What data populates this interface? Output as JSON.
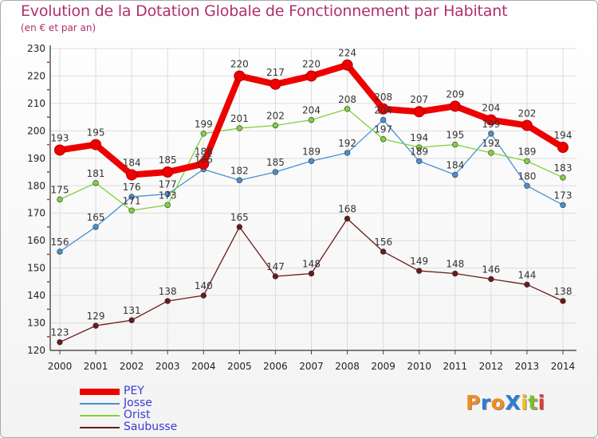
{
  "title": "Evolution de la Dotation Globale de Fonctionnement par Habitant",
  "subtitle": "(en € et par an)",
  "logo": {
    "text": "ProXiti",
    "letter_colors": [
      "#f28c1e",
      "#2b7fd4",
      "#f28c1e",
      "#2b7fd4",
      "#f2c01e",
      "#7bbf2a",
      "#e33b3b"
    ]
  },
  "chart_data": {
    "type": "line",
    "title": "Evolution de la Dotation Globale de Fonctionnement par Habitant",
    "subtitle": "(en € et par an)",
    "x": [
      "2000",
      "2001",
      "2002",
      "2003",
      "2004",
      "2005",
      "2006",
      "2007",
      "2008",
      "2009",
      "2010",
      "2011",
      "2012",
      "2013",
      "2014"
    ],
    "ylim": [
      120,
      230
    ],
    "yticks": [
      120,
      130,
      140,
      150,
      160,
      170,
      180,
      190,
      200,
      210,
      220,
      230
    ],
    "grid": true,
    "legend_position": "bottom-left",
    "series": [
      {
        "name": "PEY",
        "color": "#ee0000",
        "emphasis": true,
        "values": [
          193,
          195,
          184,
          185,
          188,
          220,
          217,
          220,
          224,
          208,
          207,
          209,
          204,
          202,
          194
        ],
        "labels": [
          "193",
          "195",
          "184",
          "185",
          "188",
          "220",
          "217",
          "220",
          "224",
          "208",
          "207",
          "209",
          "204",
          "202",
          "194"
        ]
      },
      {
        "name": "Josse",
        "color": "#4a8fcf",
        "emphasis": false,
        "values": [
          156,
          165,
          176,
          177,
          186,
          182,
          185,
          189,
          192,
          204,
          189,
          184,
          199,
          180,
          173
        ],
        "labels": [
          "156",
          "165",
          "176",
          "177",
          "186",
          "182",
          "185",
          "189",
          "192",
          "204",
          "189",
          "184",
          "199",
          "180",
          "173"
        ]
      },
      {
        "name": "Orist",
        "color": "#7ed23c",
        "emphasis": false,
        "values": [
          175,
          181,
          171,
          173,
          199,
          201,
          202,
          204,
          208,
          197,
          194,
          195,
          192,
          189,
          183
        ],
        "labels": [
          "175",
          "181",
          "171",
          "173",
          "199",
          "201",
          "202",
          "204",
          "208",
          "197",
          "194",
          "195",
          "192",
          "189",
          "183"
        ]
      },
      {
        "name": "Saubusse",
        "color": "#6b1a1a",
        "emphasis": false,
        "values": [
          123,
          129,
          131,
          138,
          140,
          165,
          147,
          148,
          168,
          156,
          149,
          148,
          146,
          144,
          138
        ],
        "labels": [
          "123",
          "129",
          "131",
          "138",
          "140",
          "165",
          "147",
          "148",
          "168",
          "156",
          "149",
          "148",
          "146",
          "144",
          "138"
        ]
      }
    ]
  }
}
